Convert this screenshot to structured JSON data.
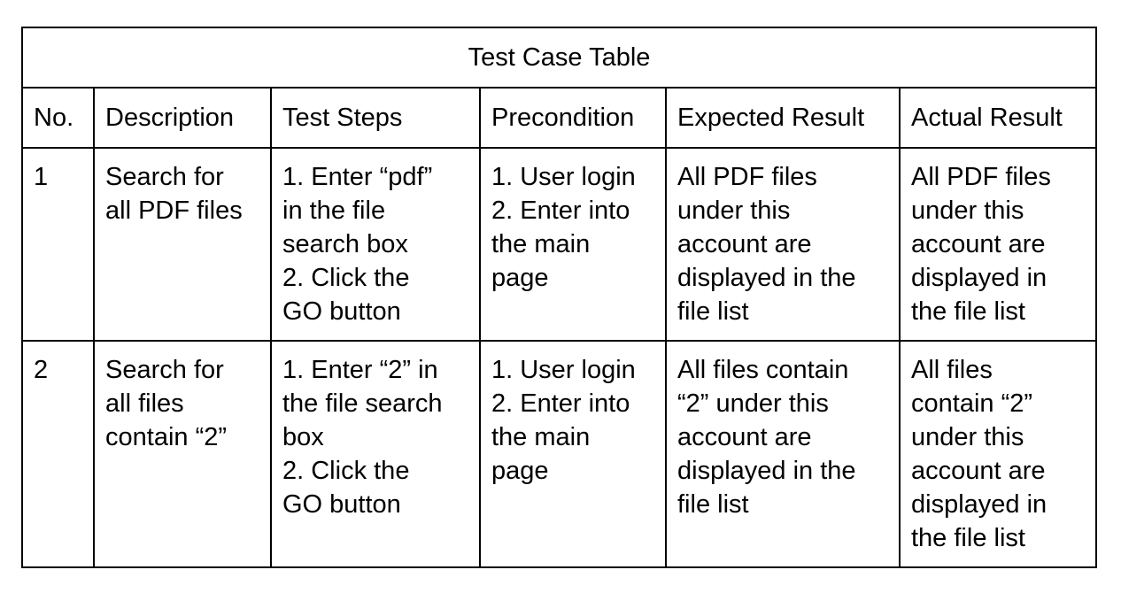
{
  "table": {
    "title": "Test Case Table",
    "headers": {
      "no": "No.",
      "description": "Description",
      "steps": "Test Steps",
      "precondition": "Precondition",
      "expected": "Expected Result",
      "actual": "Actual Result"
    },
    "rows": [
      {
        "no": "1",
        "description": [
          "Search for",
          "all PDF files"
        ],
        "steps": [
          "1. Enter “pdf”",
          "in the file",
          "search box",
          "2. Click the",
          "GO button"
        ],
        "precondition": [
          "1. User login",
          "2. Enter into",
          "the main",
          "page"
        ],
        "expected": [
          "All PDF files",
          "under this",
          "account are",
          "displayed in the",
          "file list"
        ],
        "actual": [
          "All PDF files",
          "under this",
          "account are",
          "displayed in",
          "the file list"
        ]
      },
      {
        "no": "2",
        "description": [
          "Search for",
          "all files",
          "contain “2”"
        ],
        "steps": [
          "1. Enter “2” in",
          "the file search",
          "box",
          "2. Click the",
          "GO button"
        ],
        "precondition": [
          "1. User login",
          "2. Enter into",
          "the main",
          "page"
        ],
        "expected": [
          "All files contain",
          "“2” under this",
          "account are",
          "displayed in the",
          "file list"
        ],
        "actual": [
          "All files",
          "contain “2”",
          "under this",
          "account are",
          "displayed in",
          "the file list"
        ]
      }
    ]
  }
}
